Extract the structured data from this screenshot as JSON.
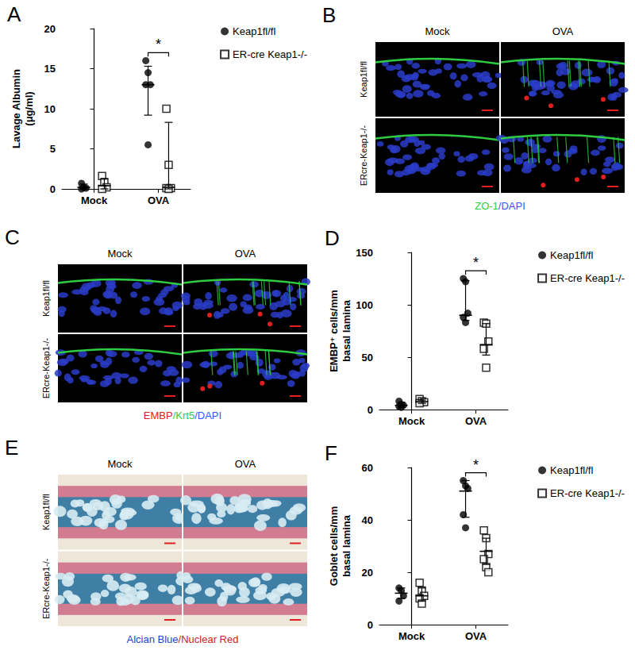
{
  "chart_data": [
    {
      "panel_label": "A",
      "type": "scatter",
      "categories": [
        "Mock",
        "OVA"
      ],
      "y_label": "Lavage Albumin\n(μg/ml)",
      "ylim": [
        0,
        20
      ],
      "yticks": [
        0,
        5,
        10,
        15,
        20
      ],
      "grid": false,
      "legend": "right",
      "series": [
        {
          "name": "Keap1fl/fl",
          "color": "#000000",
          "marker": "circle",
          "values": [
            [
              0.7,
              0.2,
              0.1,
              0.0
            ],
            [
              16,
              14.5,
              13,
              13,
              5.5
            ]
          ],
          "center": [
            0.2,
            13
          ],
          "lower": [
            0,
            9.2
          ],
          "upper": [
            0.6,
            15.3
          ]
        },
        {
          "name": "ER-cre Keap1-/-",
          "color": "#000000",
          "marker": "square-open",
          "values": [
            [
              1.6,
              0.8,
              0.2,
              0.0
            ],
            [
              10,
              3,
              0.1,
              0.1,
              0
            ]
          ],
          "center": [
            0.4,
            0.2
          ],
          "lower": [
            0,
            0
          ],
          "upper": [
            1.3,
            8.3
          ]
        }
      ],
      "annotations": [
        {
          "text": "*",
          "category": "OVA"
        }
      ]
    },
    {
      "panel_label": "D",
      "type": "scatter",
      "categories": [
        "Mock",
        "OVA"
      ],
      "y_label": "EMBP⁺ cells/mm\nbasal lamina",
      "ylim": [
        0,
        150
      ],
      "yticks": [
        0,
        50,
        100,
        150
      ],
      "grid": false,
      "legend": "right",
      "series": [
        {
          "name": "Keap1fl/fl",
          "color": "#000000",
          "marker": "circle",
          "values": [
            [
              8,
              5,
              4,
              3,
              2
            ],
            [
              125,
              122,
              92,
              88,
              83
            ]
          ],
          "center": [
            4,
            90
          ],
          "lower": [
            2,
            85
          ],
          "upper": [
            7,
            123
          ]
        },
        {
          "name": "ER-cre Keap1-/-",
          "color": "#000000",
          "marker": "square-open",
          "values": [
            [
              10,
              8,
              7,
              6
            ],
            [
              83,
              82,
              65,
              58,
              40
            ]
          ],
          "center": [
            7.5,
            62
          ],
          "lower": [
            6,
            52
          ],
          "upper": [
            9,
            82
          ]
        }
      ],
      "annotations": [
        {
          "text": "*",
          "category": "OVA"
        }
      ]
    },
    {
      "panel_label": "F",
      "type": "scatter",
      "categories": [
        "Mock",
        "OVA"
      ],
      "y_label": "Goblet cells/mm\nbasal lamina",
      "ylim": [
        0,
        60
      ],
      "yticks": [
        0,
        20,
        40,
        60
      ],
      "grid": false,
      "legend": "right",
      "series": [
        {
          "name": "Keap1fl/fl",
          "color": "#000000",
          "marker": "circle",
          "values": [
            [
              14,
              13,
              11,
              9
            ],
            [
              55,
              53,
              52,
              42,
              37
            ]
          ],
          "center": [
            12,
            51
          ],
          "lower": [
            10,
            41
          ],
          "upper": [
            14,
            55
          ]
        },
        {
          "name": "ER-cre Keap1-/-",
          "color": "#000000",
          "marker": "square-open",
          "values": [
            [
              16,
              13,
              11,
              10,
              8
            ],
            [
              36,
              33,
              27,
              25,
              22,
              20
            ]
          ],
          "center": [
            11,
            28
          ],
          "lower": [
            9,
            23
          ],
          "upper": [
            14,
            33
          ]
        }
      ],
      "annotations": [
        {
          "text": "*",
          "category": "OVA"
        }
      ]
    }
  ],
  "image_panels": [
    {
      "panel_label": "B",
      "style": "fluorescence",
      "columns": [
        "Mock",
        "OVA"
      ],
      "rows": [
        "Keap1fl/fl",
        "ERcre-Keap1-/-"
      ],
      "caption": [
        {
          "text": "ZO-1",
          "color": "#2ecc40"
        },
        {
          "text": "/DAPI",
          "color": "#3355ff"
        }
      ]
    },
    {
      "panel_label": "C",
      "style": "fluorescence",
      "columns": [
        "Mock",
        "OVA"
      ],
      "rows": [
        "Keap1fl/fl",
        "ERcre-Keap1-/-"
      ],
      "caption": [
        {
          "text": "EMBP",
          "color": "#e02020"
        },
        {
          "text": "/Krt5",
          "color": "#2ecc40"
        },
        {
          "text": "/DAPI",
          "color": "#3355ff"
        }
      ]
    },
    {
      "panel_label": "E",
      "style": "histology",
      "columns": [
        "Mock",
        "OVA"
      ],
      "rows": [
        "Keap1fl/fl",
        "ERcre-Keap1-/-"
      ],
      "caption": [
        {
          "text": "Alcian Blue",
          "color": "#2244cc"
        },
        {
          "text": "/Nuclear Red",
          "color": "#cc2222"
        }
      ]
    }
  ]
}
